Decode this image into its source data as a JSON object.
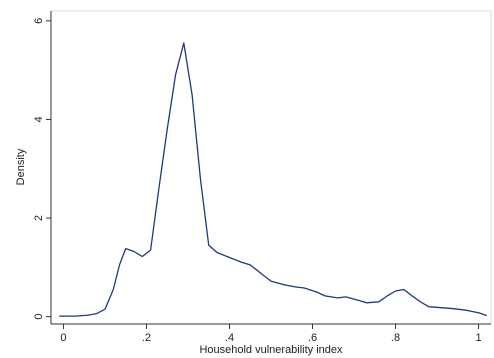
{
  "chart_data": {
    "type": "line",
    "xlabel": "Household vulnerability index",
    "ylabel": "Density",
    "xlim": [
      -0.03,
      1.03
    ],
    "ylim": [
      -0.15,
      6.2
    ],
    "x_ticks": [
      {
        "value": 0,
        "label": "0"
      },
      {
        "value": 0.2,
        "label": ".2"
      },
      {
        "value": 0.4,
        "label": ".4"
      },
      {
        "value": 0.6,
        "label": ".6"
      },
      {
        "value": 0.8,
        "label": ".8"
      },
      {
        "value": 1.0,
        "label": "1"
      }
    ],
    "y_ticks": [
      {
        "value": 0,
        "label": "0"
      },
      {
        "value": 2,
        "label": "2"
      },
      {
        "value": 4,
        "label": "4"
      },
      {
        "value": 6,
        "label": "6"
      }
    ],
    "grid": false,
    "series": [
      {
        "color": "#1f3a7a",
        "x": [
          -0.01,
          0.03,
          0.06,
          0.08,
          0.1,
          0.12,
          0.135,
          0.15,
          0.17,
          0.19,
          0.21,
          0.23,
          0.25,
          0.27,
          0.29,
          0.31,
          0.33,
          0.35,
          0.37,
          0.4,
          0.43,
          0.45,
          0.48,
          0.5,
          0.53,
          0.56,
          0.58,
          0.61,
          0.63,
          0.66,
          0.68,
          0.71,
          0.73,
          0.76,
          0.78,
          0.8,
          0.82,
          0.84,
          0.86,
          0.88,
          0.91,
          0.94,
          0.97,
          1.0,
          1.02
        ],
        "y": [
          0.01,
          0.01,
          0.03,
          0.06,
          0.15,
          0.55,
          1.05,
          1.38,
          1.32,
          1.22,
          1.35,
          2.6,
          3.8,
          4.9,
          5.55,
          4.5,
          2.8,
          1.45,
          1.3,
          1.2,
          1.1,
          1.05,
          0.85,
          0.72,
          0.65,
          0.6,
          0.58,
          0.5,
          0.42,
          0.38,
          0.4,
          0.33,
          0.28,
          0.3,
          0.42,
          0.52,
          0.55,
          0.42,
          0.3,
          0.2,
          0.18,
          0.16,
          0.13,
          0.08,
          0.02
        ]
      }
    ]
  }
}
